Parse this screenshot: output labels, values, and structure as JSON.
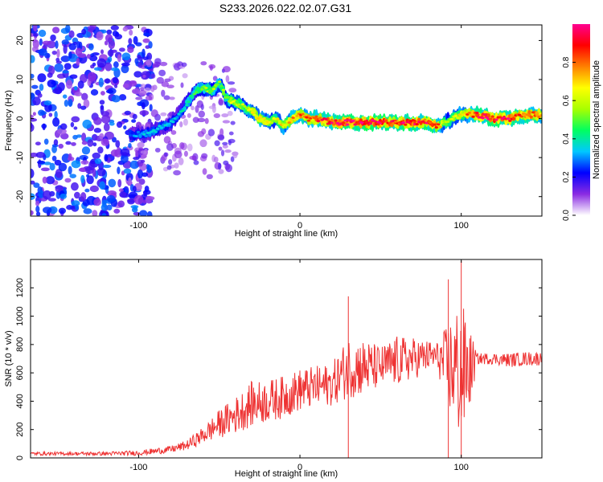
{
  "figure_title": "S233.2026.022.02.07.G31",
  "chart_data": [
    {
      "type": "heatmap",
      "title": "S233.2026.022.02.07.G31",
      "xlabel": "Height of straight line (km)",
      "ylabel": "Frequency (Hz)",
      "xlim": [
        -167,
        150
      ],
      "ylim": [
        -25,
        24
      ],
      "xticks": [
        -100,
        0,
        100
      ],
      "yticks": [
        -20,
        -10,
        0,
        10,
        20
      ],
      "colorbar": {
        "label": "Normalized spectral amplitude",
        "range": [
          0,
          1
        ],
        "ticks": [
          0.0,
          0.2,
          0.4,
          0.6,
          0.8
        ],
        "colors": [
          "#ffffff",
          "#8a2be2",
          "#0000ff",
          "#00c8ff",
          "#00ff60",
          "#a8ff00",
          "#ffff00",
          "#ff8000",
          "#ff0000",
          "#ff0090"
        ]
      },
      "noise_region_km": [
        -167,
        -100
      ],
      "ridge": {
        "x": [
          -105,
          -95,
          -90,
          -85,
          -80,
          -75,
          -70,
          -65,
          -60,
          -55,
          -50,
          -45,
          -40,
          -35,
          -30,
          -25,
          -20,
          -15,
          -10,
          -5,
          0,
          5,
          10,
          20,
          30,
          40,
          50,
          60,
          70,
          80,
          85,
          90,
          95,
          100,
          110,
          120,
          130,
          140,
          150
        ],
        "freq": [
          -4,
          -4,
          -3,
          -2,
          -1,
          1,
          4,
          7,
          8,
          7,
          9,
          5,
          4,
          3,
          2,
          0,
          -1,
          0,
          -2,
          0,
          1,
          0,
          0,
          -1,
          -1,
          -1,
          -1,
          -1,
          -1,
          -1,
          -2,
          -1,
          0,
          1,
          1,
          0,
          0,
          1,
          1
        ],
        "amplitude": [
          0.25,
          0.3,
          0.3,
          0.3,
          0.3,
          0.3,
          0.35,
          0.4,
          0.45,
          0.5,
          0.45,
          0.5,
          0.55,
          0.5,
          0.6,
          0.65,
          0.6,
          0.55,
          0.6,
          0.65,
          0.7,
          0.7,
          0.75,
          0.8,
          0.85,
          0.85,
          0.85,
          0.8,
          0.85,
          0.8,
          0.75,
          0.5,
          0.55,
          0.6,
          0.8,
          0.85,
          0.8,
          0.75,
          0.7
        ]
      }
    },
    {
      "type": "line",
      "xlabel": "Height of straight line (km)",
      "ylabel": "SNR (10 * v/v)",
      "xlim": [
        -167,
        150
      ],
      "ylim": [
        0,
        1400
      ],
      "xticks": [
        -100,
        0,
        100
      ],
      "yticks": [
        0,
        200,
        400,
        600,
        800,
        1000,
        1200
      ],
      "color": "#ee3333",
      "series": [
        {
          "name": "SNR",
          "envelope_x": [
            -167,
            -140,
            -120,
            -100,
            -80,
            -70,
            -60,
            -50,
            -40,
            -30,
            -20,
            -10,
            0,
            10,
            20,
            30,
            40,
            50,
            60,
            70,
            80,
            85,
            90,
            95,
            100,
            105,
            110,
            120,
            130,
            140,
            150
          ],
          "mean": [
            30,
            30,
            30,
            35,
            60,
            90,
            160,
            240,
            300,
            380,
            400,
            430,
            480,
            500,
            520,
            640,
            640,
            640,
            680,
            700,
            720,
            720,
            660,
            640,
            600,
            620,
            700,
            700,
            690,
            700,
            700
          ],
          "spread": [
            12,
            12,
            14,
            18,
            25,
            35,
            60,
            100,
            130,
            160,
            150,
            150,
            150,
            150,
            150,
            220,
            200,
            150,
            180,
            150,
            110,
            100,
            250,
            400,
            520,
            300,
            40,
            40,
            50,
            50,
            50
          ]
        }
      ],
      "peaks": [
        {
          "x": 30,
          "y": 1140
        },
        {
          "x": 100,
          "y": 1390
        },
        {
          "x": 92,
          "y": 1260
        }
      ]
    }
  ]
}
